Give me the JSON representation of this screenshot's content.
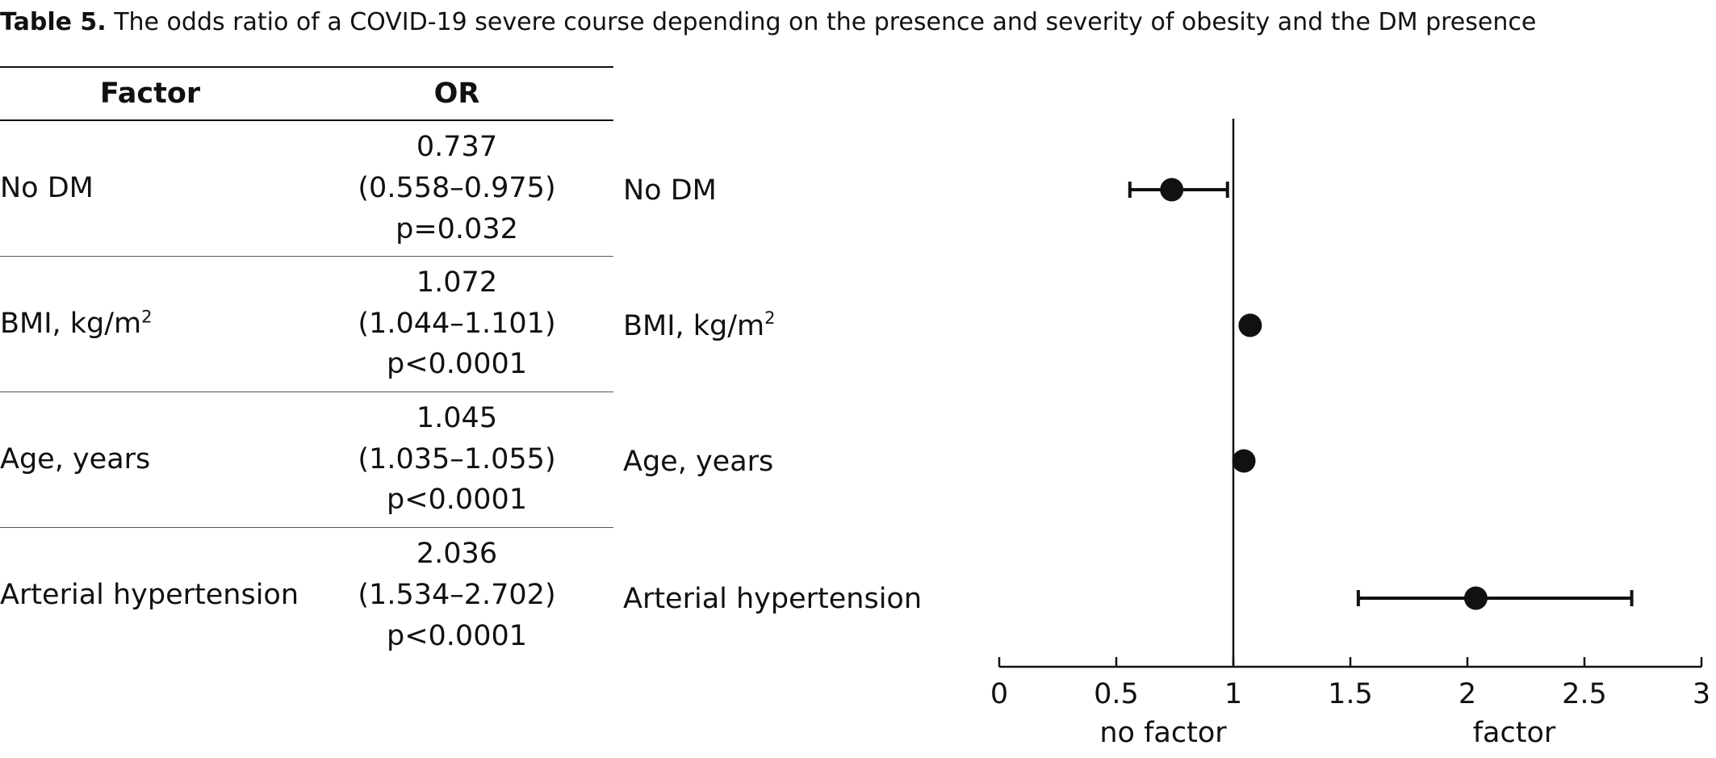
{
  "caption": {
    "label": "Table 5.",
    "text": "The odds ratio of a COVID-19 severe course depending on the presence and severity of obesity and the DM presence"
  },
  "table": {
    "headers": {
      "factor": "Factor",
      "or": "OR"
    },
    "rows": [
      {
        "factor": "No DM",
        "factor_sup": "",
        "or": "0.737",
        "ci": "(0.558–0.975)",
        "p": "p=0.032"
      },
      {
        "factor": "BMI, kg/m",
        "factor_sup": "2",
        "or": "1.072",
        "ci": "(1.044–1.101)",
        "p": "p<0.0001"
      },
      {
        "factor": "Age, years",
        "factor_sup": "",
        "or": "1.045",
        "ci": "(1.035–1.055)",
        "p": "p<0.0001"
      },
      {
        "factor": "Arterial hypertension",
        "factor_sup": "",
        "or": "2.036",
        "ci": "(1.534–2.702)",
        "p": "p<0.0001"
      }
    ]
  },
  "chart_data": {
    "type": "scatter",
    "subtype": "forest-plot",
    "reference_line": 1,
    "xlim": [
      0,
      3
    ],
    "xticks": [
      0,
      0.5,
      1,
      1.5,
      2,
      2.5,
      3
    ],
    "xtick_labels": [
      "0",
      "0.5",
      "1",
      "1.5",
      "2",
      "2.5",
      "3"
    ],
    "axis_side_labels": {
      "left": "no factor",
      "right": "factor"
    },
    "grid": false,
    "series": [
      {
        "label": "No DM",
        "label_sup": "",
        "value": 0.737,
        "ci_low": 0.558,
        "ci_high": 0.975
      },
      {
        "label": "BMI, kg/m",
        "label_sup": "2",
        "value": 1.072,
        "ci_low": 1.044,
        "ci_high": 1.101
      },
      {
        "label": "Age, years",
        "label_sup": "",
        "value": 1.045,
        "ci_low": 1.035,
        "ci_high": 1.055
      },
      {
        "label": "Arterial hypertension",
        "label_sup": "",
        "value": 2.036,
        "ci_low": 1.534,
        "ci_high": 2.702
      }
    ]
  }
}
